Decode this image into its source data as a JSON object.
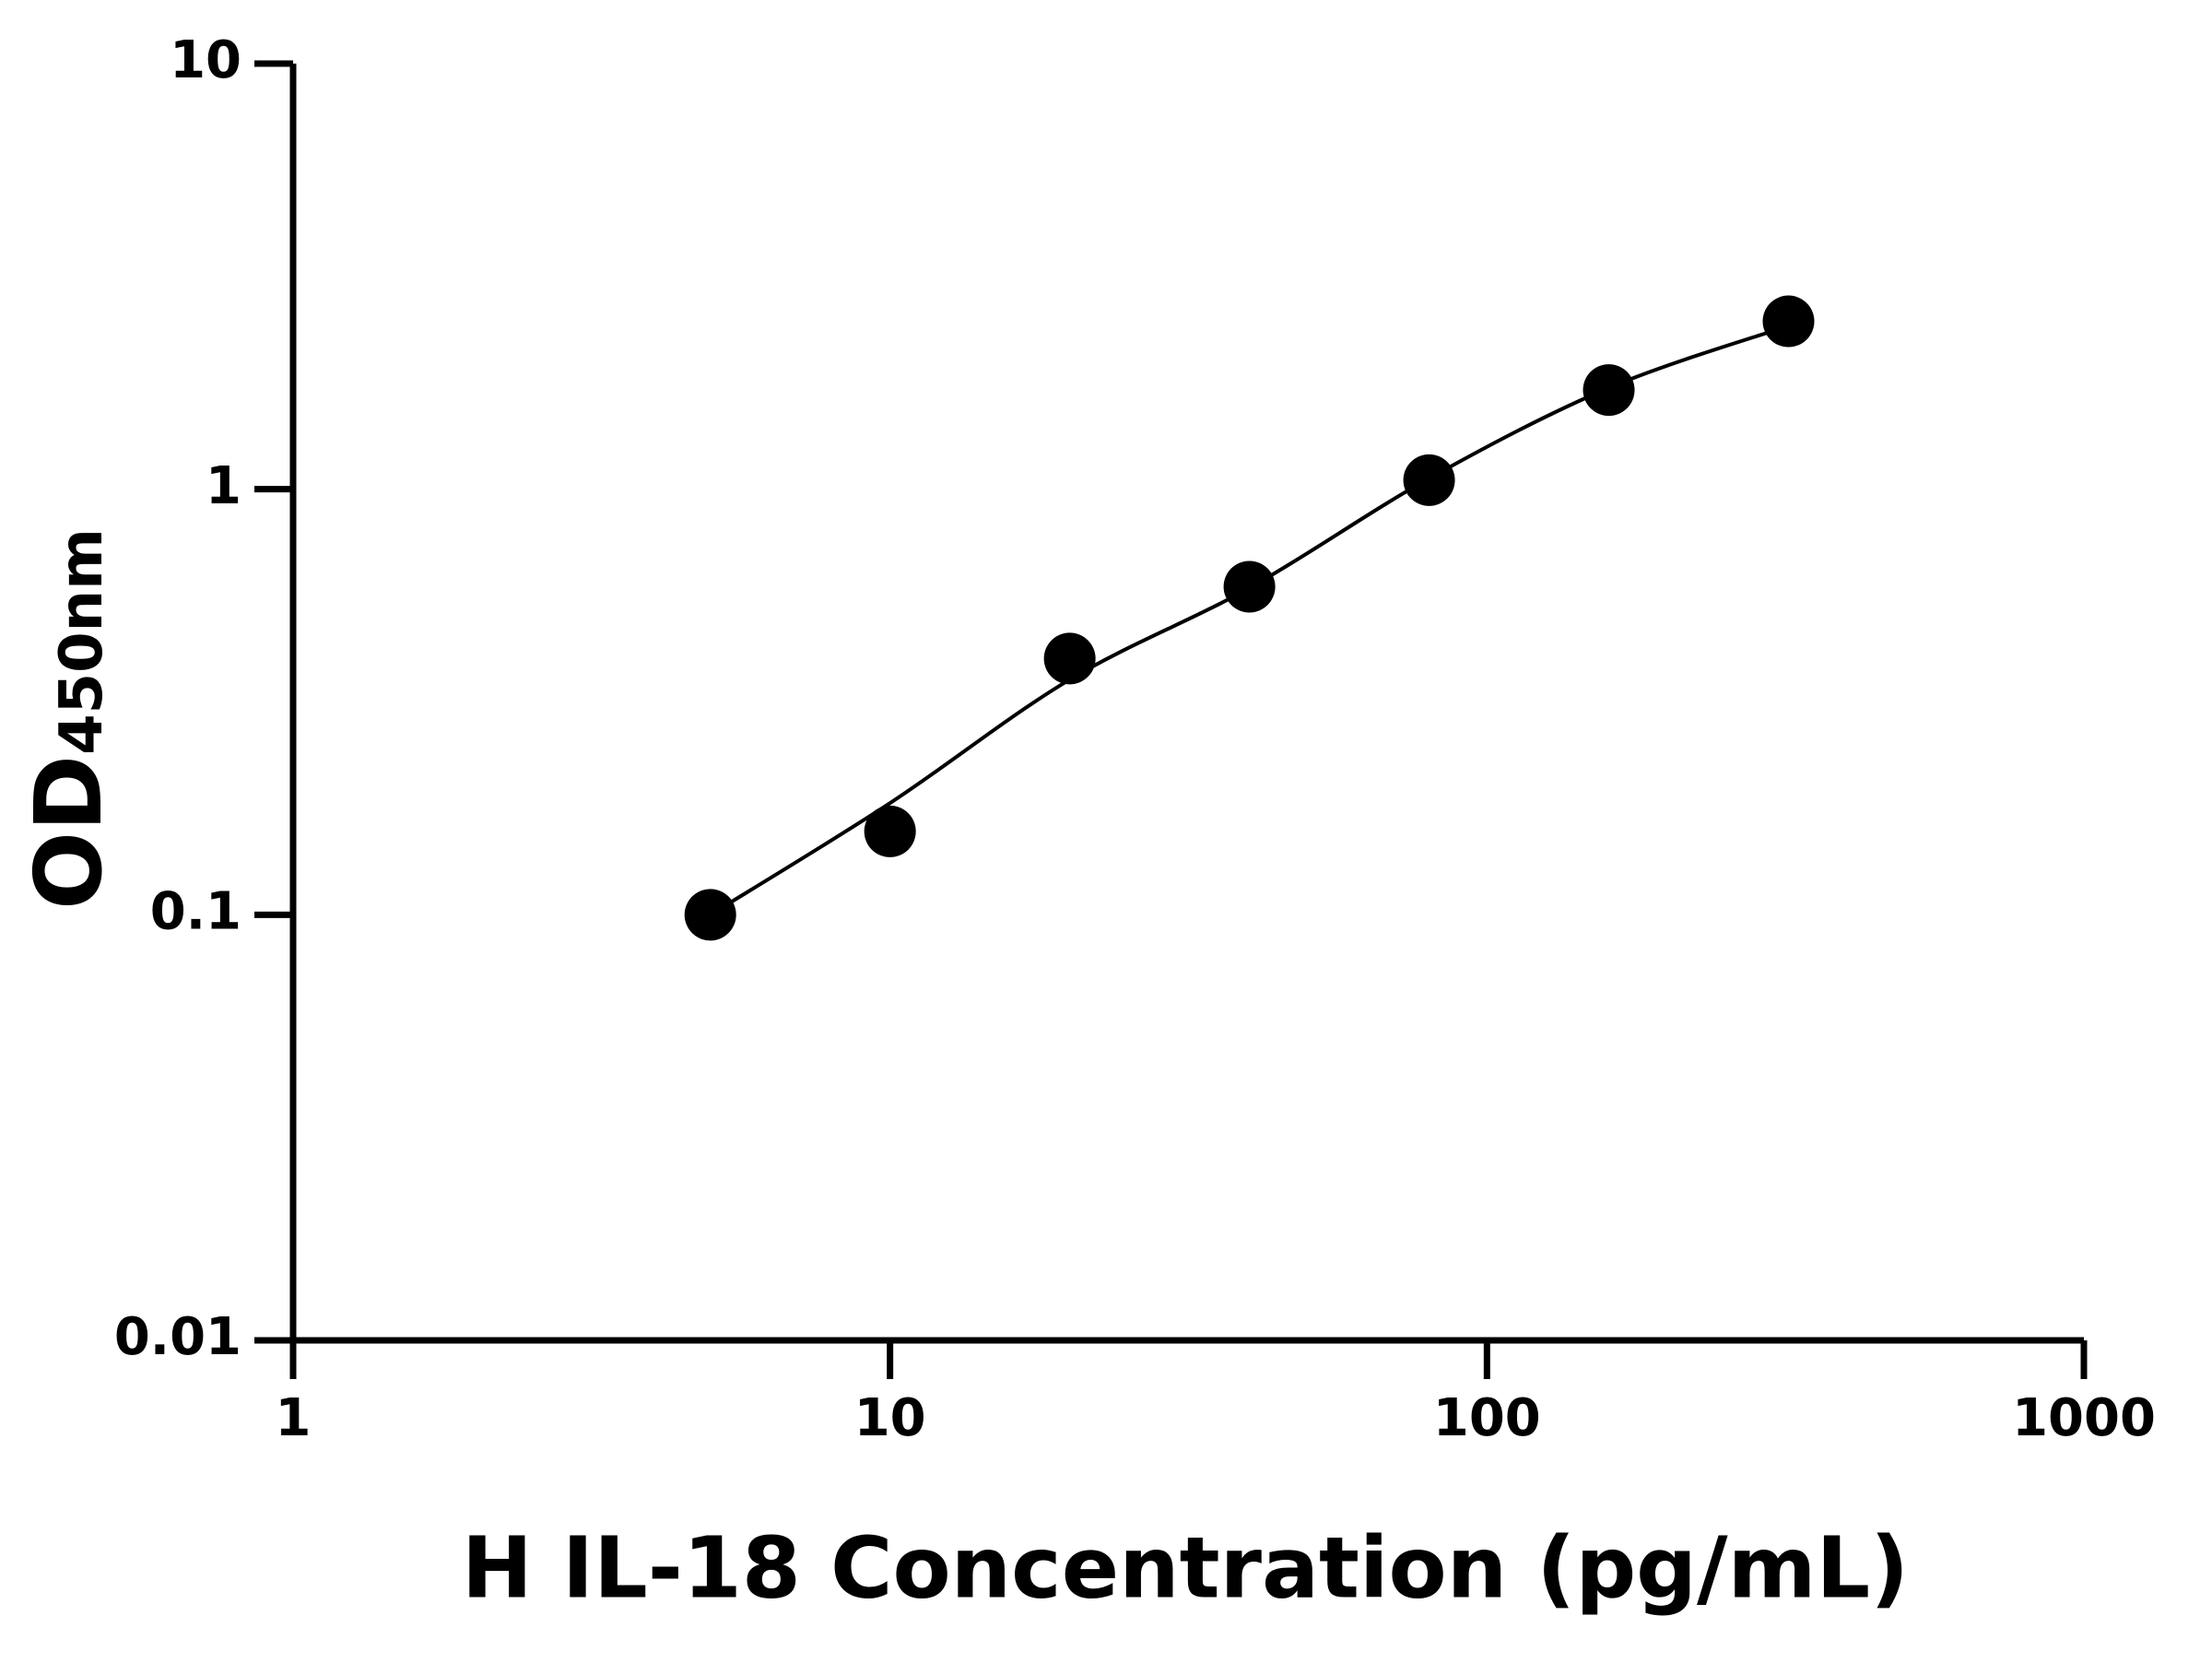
{
  "chart_data": {
    "type": "scatter",
    "xlabel": "H IL-18 Concentration (pg/mL)",
    "ylabel": "OD",
    "ylabel_subscript": "450nm",
    "xscale": "log",
    "yscale": "log",
    "xlim": [
      1,
      1000
    ],
    "ylim": [
      0.01,
      10
    ],
    "xticks": [
      1,
      10,
      100,
      1000
    ],
    "yticks": [
      0.01,
      0.1,
      1,
      10
    ],
    "grid": false,
    "color": "#000000",
    "x": [
      5,
      10,
      20,
      40,
      80,
      160,
      320
    ],
    "values": [
      0.1,
      0.157,
      0.4,
      0.59,
      1.05,
      1.71,
      2.48
    ],
    "curve": {
      "x": [
        5,
        10,
        20,
        40,
        80,
        160,
        320
      ],
      "values": [
        0.1,
        0.183,
        0.357,
        0.586,
        1.06,
        1.73,
        2.42
      ]
    }
  }
}
